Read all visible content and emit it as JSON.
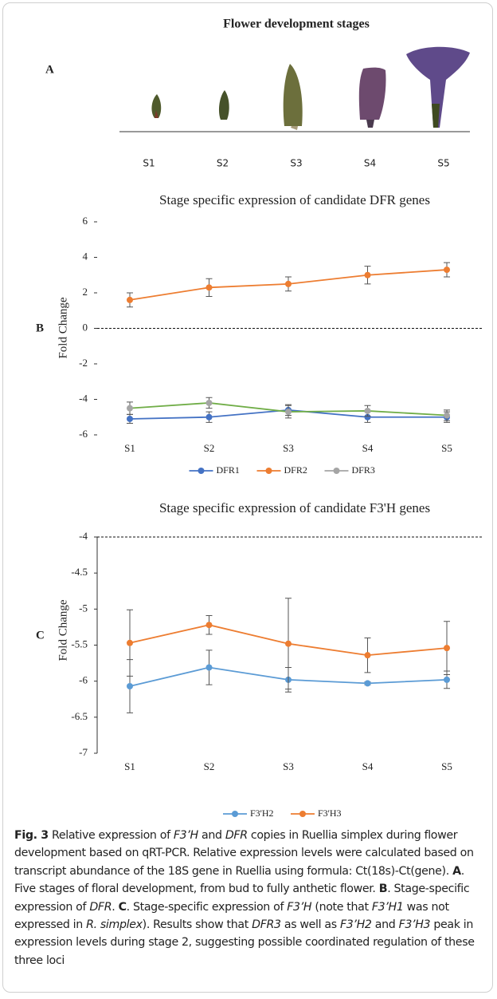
{
  "panel_a": {
    "label": "A",
    "title": "Flower development stages",
    "stages": [
      "S1",
      "S2",
      "S3",
      "S4",
      "S5"
    ]
  },
  "chart_data": [
    {
      "type": "line",
      "panel_label": "B",
      "title": "Stage specific expression of candidate DFR genes",
      "y_label": "Fold Change",
      "categories": [
        "S1",
        "S2",
        "S3",
        "S4",
        "S5"
      ],
      "ylim": [
        -6,
        6
      ],
      "yticks": [
        -6,
        -4,
        -2,
        0,
        2,
        4,
        6
      ],
      "reference_line": 0,
      "series": [
        {
          "name": "DFR1",
          "color": "#4472c4",
          "values": [
            -5.1,
            -5.0,
            -4.6,
            -5.0,
            -5.0
          ],
          "errors": [
            0.25,
            0.3,
            0.3,
            0.3,
            0.3
          ]
        },
        {
          "name": "DFR2",
          "color": "#ed7d31",
          "values": [
            1.6,
            2.3,
            2.5,
            3.0,
            3.3
          ],
          "errors": [
            0.4,
            0.5,
            0.4,
            0.5,
            0.4
          ]
        },
        {
          "name": "DFR3",
          "color": "#a5a5a5",
          "line_color": "#70ad47",
          "values": [
            -4.5,
            -4.2,
            -4.7,
            -4.65,
            -4.9
          ],
          "errors": [
            0.35,
            0.3,
            0.35,
            0.3,
            0.3
          ]
        }
      ]
    },
    {
      "type": "line",
      "panel_label": "C",
      "title": "Stage specific expression of candidate F3'H genes",
      "y_label": "Fold Change",
      "categories": [
        "S1",
        "S2",
        "S3",
        "S4",
        "S5"
      ],
      "ylim": [
        -7,
        -4
      ],
      "yticks": [
        -7,
        -6.5,
        -6,
        -5.5,
        -5,
        -4.5,
        -4
      ],
      "reference_line": -4,
      "series": [
        {
          "name": "F3'H2",
          "color": "#5b9bd5",
          "values": [
            -6.07,
            -5.81,
            -5.98,
            -6.03,
            -5.98
          ],
          "errors": [
            0.37,
            0.24,
            0.17,
            0.02,
            0.12
          ]
        },
        {
          "name": "F3'H3",
          "color": "#ed7d31",
          "values": [
            -5.47,
            -5.22,
            -5.48,
            -5.64,
            -5.54
          ],
          "errors": [
            0.46,
            0.13,
            0.63,
            0.24,
            0.37
          ]
        }
      ]
    }
  ],
  "caption": [
    {
      "text": "Fig. 3",
      "style": "bold"
    },
    {
      "text": " Relative expression of ",
      "style": "normal"
    },
    {
      "text": "F3’H",
      "style": "italic"
    },
    {
      "text": " and ",
      "style": "normal"
    },
    {
      "text": "DFR",
      "style": "italic"
    },
    {
      "text": " copies in Ruellia simplex during flower development based on qRT-PCR. Relative expression levels were calculated based on transcript abundance of the 18S gene in Ruellia using formula: Ct(18s)-Ct(gene). ",
      "style": "normal"
    },
    {
      "text": "A",
      "style": "bold"
    },
    {
      "text": ". Five stages of floral development, from bud to fully anthetic flower. ",
      "style": "normal"
    },
    {
      "text": "B",
      "style": "bold"
    },
    {
      "text": ". Stage-specific expression of ",
      "style": "normal"
    },
    {
      "text": "DFR",
      "style": "italic"
    },
    {
      "text": ". ",
      "style": "normal"
    },
    {
      "text": "C",
      "style": "bold"
    },
    {
      "text": ". Stage-specific expression of ",
      "style": "normal"
    },
    {
      "text": "F3’H",
      "style": "italic"
    },
    {
      "text": " (note that ",
      "style": "normal"
    },
    {
      "text": "F3’H1",
      "style": "italic"
    },
    {
      "text": " was not expressed in ",
      "style": "normal"
    },
    {
      "text": "R. simplex",
      "style": "italic"
    },
    {
      "text": "). Results show that ",
      "style": "normal"
    },
    {
      "text": "DFR3",
      "style": "italic"
    },
    {
      "text": " as well as ",
      "style": "normal"
    },
    {
      "text": "F3’H2",
      "style": "italic"
    },
    {
      "text": " and ",
      "style": "normal"
    },
    {
      "text": "F3’H3",
      "style": "italic"
    },
    {
      "text": " peak in expression levels during stage 2, suggesting possible coordinated regulation of these three loci",
      "style": "normal"
    }
  ]
}
